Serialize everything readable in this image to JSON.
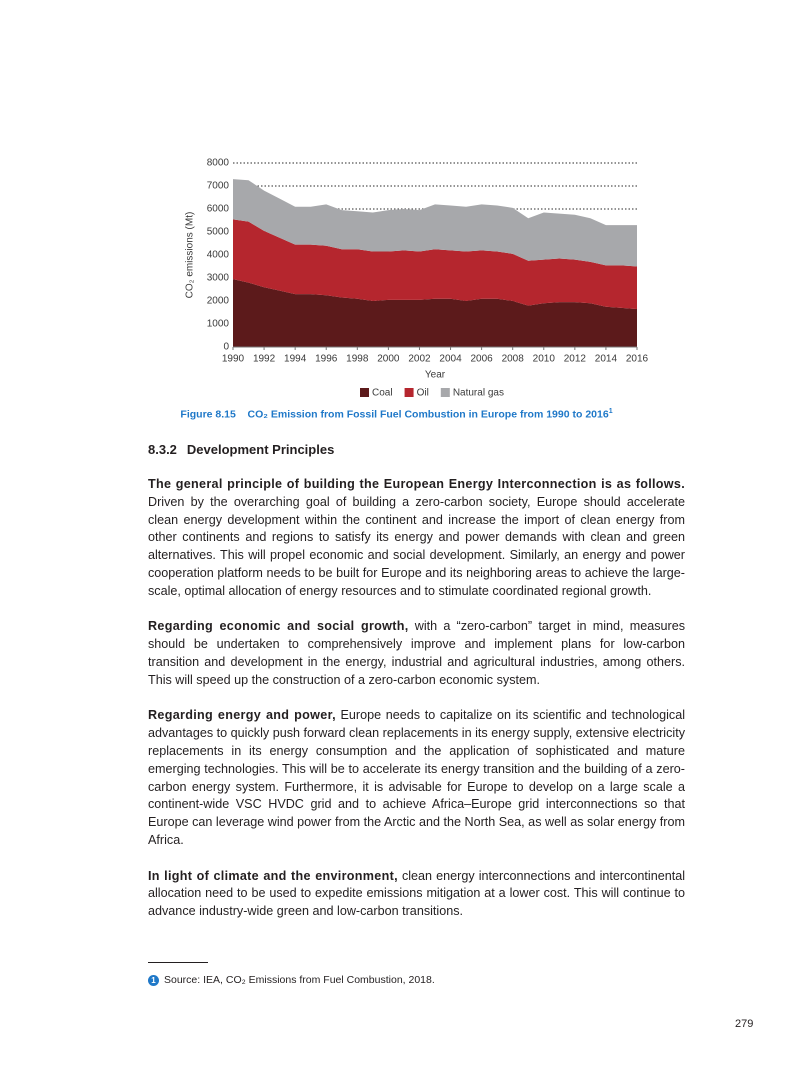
{
  "chart_data": {
    "type": "stacked-area",
    "x": [
      1990,
      1991,
      1992,
      1993,
      1994,
      1995,
      1996,
      1997,
      1998,
      1999,
      2000,
      2001,
      2002,
      2003,
      2004,
      2005,
      2006,
      2007,
      2008,
      2009,
      2010,
      2011,
      2012,
      2013,
      2014,
      2015,
      2016
    ],
    "xlim": [
      1990,
      2016
    ],
    "xticks": [
      1990,
      1992,
      1994,
      1996,
      1998,
      2000,
      2002,
      2004,
      2006,
      2008,
      2010,
      2012,
      2014,
      2016
    ],
    "ylim": [
      0,
      8000
    ],
    "yticks": [
      0,
      1000,
      2000,
      3000,
      4000,
      5000,
      6000,
      7000,
      8000
    ],
    "grid": true,
    "x_label": "Year",
    "y_label": "CO₂ emissions (Mt)",
    "legend": "bottom",
    "series": [
      {
        "name": "Coal",
        "color": "#5c1a1b",
        "values": [
          2950,
          2800,
          2600,
          2450,
          2300,
          2300,
          2250,
          2150,
          2100,
          2000,
          2050,
          2050,
          2050,
          2100,
          2100,
          2000,
          2100,
          2100,
          2000,
          1800,
          1900,
          1950,
          1950,
          1900,
          1750,
          1700,
          1650
        ]
      },
      {
        "name": "Oil",
        "color": "#b5262e",
        "values": [
          2600,
          2650,
          2450,
          2300,
          2150,
          2150,
          2150,
          2100,
          2150,
          2150,
          2100,
          2150,
          2100,
          2150,
          2100,
          2150,
          2100,
          2050,
          2050,
          1950,
          1900,
          1900,
          1850,
          1800,
          1800,
          1850,
          1850
        ]
      },
      {
        "name": "Natural gas",
        "color": "#a7a8ab",
        "values": [
          1750,
          1800,
          1750,
          1700,
          1650,
          1650,
          1800,
          1700,
          1650,
          1700,
          1800,
          1800,
          1800,
          1950,
          1950,
          1950,
          2000,
          2000,
          2000,
          1850,
          2050,
          1950,
          1950,
          1900,
          1750,
          1750,
          1800
        ]
      }
    ]
  },
  "caption": {
    "label": "Figure 8.15",
    "text": "CO₂ Emission from Fossil Fuel Combustion in Europe from 1990 to 2016",
    "note_marker": "1"
  },
  "section": {
    "number": "8.3.2",
    "title": "Development Principles"
  },
  "paragraphs": [
    {
      "lead": "The general principle of building the European Energy Interconnection is as follows.",
      "text": "Driven by the overarching goal of building a zero-carbon society, Europe should accelerate clean energy development within the continent and increase the import of clean energy from other continents and regions to satisfy its energy and power demands with clean and green alternatives. This will propel economic and social development. Similarly, an energy and power cooperation platform needs to be built for Europe and its neighboring areas to achieve the large-scale, optimal allocation of energy resources and to stimulate coordinated regional growth."
    },
    {
      "lead": "Regarding economic and social growth,",
      "text": "with a “zero-carbon” target in mind, measures should be undertaken to comprehensively improve and implement plans for low-carbon transition and development in the energy, industrial and agricultural industries, among others. This will speed up the construction of a zero-carbon economic system."
    },
    {
      "lead": "Regarding energy and power,",
      "text": "Europe needs to capitalize on its scientific and technological advantages to quickly push forward clean replacements in its energy supply, extensive electricity replacements in its energy consumption and the application of sophisticated and mature emerging technologies. This will be to accelerate its energy transition and the building of a zero-carbon energy system. Furthermore, it is advisable for Europe to develop on a large scale a continent-wide VSC HVDC grid and to achieve Africa–Europe grid interconnections so that Europe can leverage wind power from the Arctic and the North Sea, as well as solar energy from Africa."
    },
    {
      "lead": "In light of climate and the environment,",
      "text": "clean energy interconnections and intercontinental allocation need to be used to expedite emissions mitigation at a lower cost. This will continue to advance industry-wide green and low-carbon transitions."
    }
  ],
  "footnote": {
    "marker": "1",
    "text": "Source: IEA, CO₂ Emissions from Fuel Combustion, 2018."
  },
  "page_number": "279"
}
